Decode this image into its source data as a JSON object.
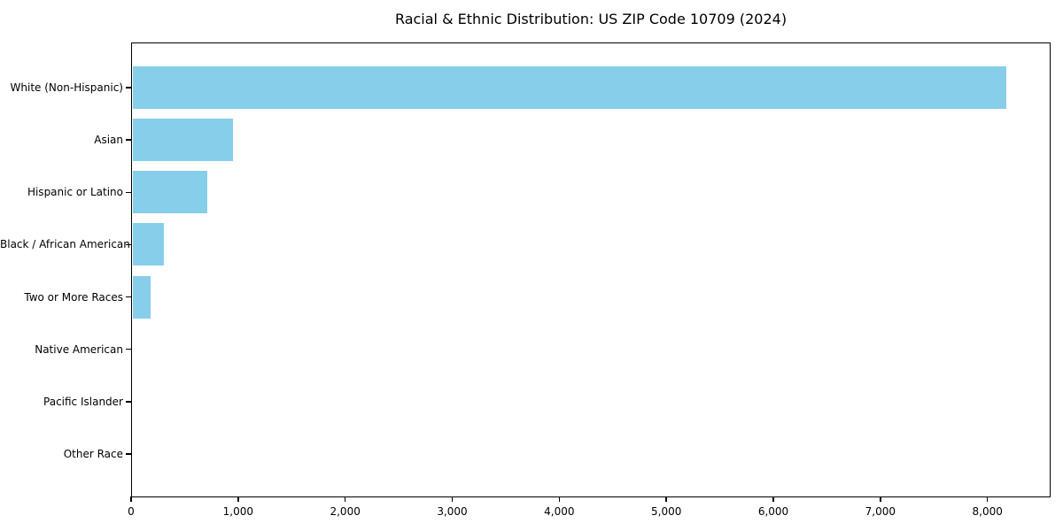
{
  "title": "Racial & Ethnic Distribution: US ZIP Code 10709 (2024)",
  "chart_data": {
    "type": "bar",
    "orientation": "horizontal",
    "title": "Racial & Ethnic Distribution: US ZIP Code 10709 (2024)",
    "categories": [
      "White (Non-Hispanic)",
      "Asian",
      "Hispanic or Latino",
      "Black / African American",
      "Two or More Races",
      "Native American",
      "Pacific Islander",
      "Other Race"
    ],
    "values": [
      8180,
      950,
      715,
      305,
      180,
      0,
      0,
      0
    ],
    "xlabel": "",
    "ylabel": "",
    "xlim": [
      0,
      8590
    ],
    "x_ticks": [
      {
        "value": 0,
        "label": "0"
      },
      {
        "value": 1000,
        "label": "1,000"
      },
      {
        "value": 2000,
        "label": "2,000"
      },
      {
        "value": 3000,
        "label": "3,000"
      },
      {
        "value": 4000,
        "label": "4,000"
      },
      {
        "value": 5000,
        "label": "5,000"
      },
      {
        "value": 6000,
        "label": "6,000"
      },
      {
        "value": 7000,
        "label": "7,000"
      },
      {
        "value": 8000,
        "label": "8,000"
      }
    ],
    "bar_color": "#87CEEB",
    "grid": false,
    "legend_position": "none"
  }
}
